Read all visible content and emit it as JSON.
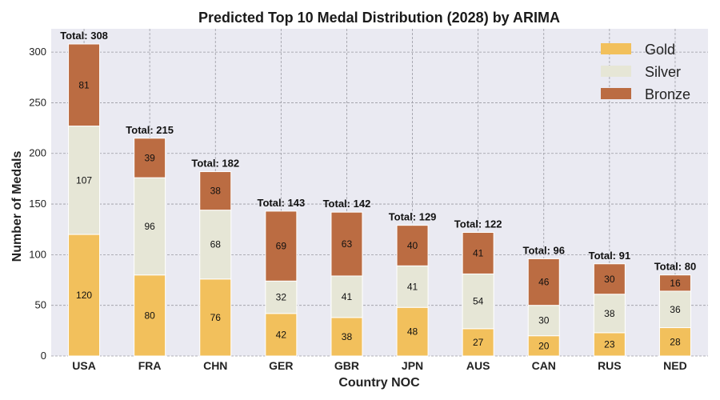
{
  "chart_data": {
    "type": "bar",
    "stacked": true,
    "title": "Predicted Top 10 Medal Distribution (2028) by ARIMA",
    "xlabel": "Country NOC",
    "ylabel": "Number of Medals",
    "ylim": [
      0,
      323
    ],
    "yticks": [
      0,
      50,
      100,
      150,
      200,
      250,
      300
    ],
    "grid": true,
    "legend_position": "top-right",
    "categories": [
      "USA",
      "FRA",
      "CHN",
      "GER",
      "GBR",
      "JPN",
      "AUS",
      "CAN",
      "RUS",
      "NED"
    ],
    "series": [
      {
        "name": "Gold",
        "color": "#f2c05c",
        "values": [
          120,
          80,
          76,
          42,
          38,
          48,
          27,
          20,
          23,
          28
        ]
      },
      {
        "name": "Silver",
        "color": "#e6e6d6",
        "values": [
          107,
          96,
          68,
          32,
          41,
          41,
          54,
          30,
          38,
          36
        ]
      },
      {
        "name": "Bronze",
        "color": "#bb6c42",
        "values": [
          81,
          39,
          38,
          69,
          63,
          40,
          41,
          46,
          30,
          16
        ]
      }
    ],
    "totals": [
      308,
      215,
      182,
      143,
      142,
      129,
      122,
      96,
      91,
      80
    ],
    "total_prefix": "Total: ",
    "plot_background": "#eaeaf2"
  }
}
